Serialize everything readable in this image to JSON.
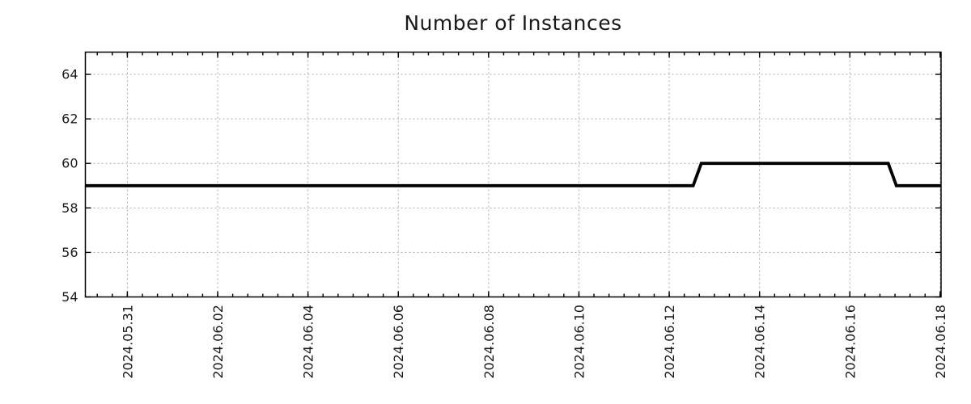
{
  "chart_data": {
    "type": "line",
    "title": "Number of Instances",
    "legend": "none",
    "grid": "dotted",
    "line_color": "#000000",
    "grid_color": "#a9a9a9",
    "axis_color": "#000000",
    "background": "#ffffff",
    "x_axis": {
      "unit": "days since 2024-05-30 00:00",
      "min": 0.07,
      "max": 19.02,
      "minor_tick_interval_days": 0.33333,
      "major_ticks": [
        {
          "label": "2024.05.31",
          "d": 1
        },
        {
          "label": "2024.06.02",
          "d": 3
        },
        {
          "label": "2024.06.04",
          "d": 5
        },
        {
          "label": "2024.06.06",
          "d": 7
        },
        {
          "label": "2024.06.08",
          "d": 9
        },
        {
          "label": "2024.06.10",
          "d": 11
        },
        {
          "label": "2024.06.12",
          "d": 13
        },
        {
          "label": "2024.06.14",
          "d": 15
        },
        {
          "label": "2024.06.16",
          "d": 17
        },
        {
          "label": "2024.06.18",
          "d": 19
        }
      ]
    },
    "y_axis": {
      "min": 54,
      "max": 65,
      "major_ticks": [
        54,
        56,
        58,
        60,
        62,
        64
      ]
    },
    "series": [
      {
        "name": "instances",
        "points": [
          {
            "d": 0.07,
            "v": 59,
            "t": "2024-05-30 ~01:40"
          },
          {
            "d": 13.53,
            "v": 59,
            "t": "2024-06-12 ~12:45"
          },
          {
            "d": 13.71,
            "v": 60,
            "t": "2024-06-12 ~17:00"
          },
          {
            "d": 17.85,
            "v": 60,
            "t": "2024-06-16 ~20:25"
          },
          {
            "d": 18.03,
            "v": 59,
            "t": "2024-06-17 ~00:45"
          },
          {
            "d": 19.02,
            "v": 59,
            "t": "2024-06-18 ~00:30"
          }
        ]
      }
    ]
  }
}
